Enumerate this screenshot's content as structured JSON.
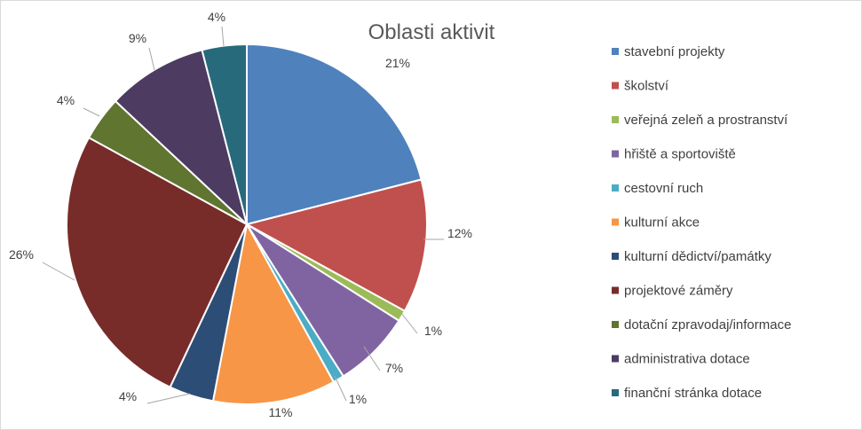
{
  "chart_data": {
    "type": "pie",
    "title": "Oblasti aktivit",
    "categories": [
      "stavební projekty",
      "školství",
      "veřejná zeleň a prostranství",
      "hřiště a sportoviště",
      "cestovní ruch",
      "kulturní akce",
      "kulturní dědictví/památky",
      "projektové záměry",
      "dotační zpravodaj/informace",
      "administrativa dotace",
      "finanční stránka dotace"
    ],
    "values": [
      21,
      12,
      1,
      7,
      1,
      11,
      4,
      26,
      4,
      9,
      4
    ],
    "labels": [
      "21%",
      "12%",
      "1%",
      "7%",
      "1%",
      "11%",
      "4%",
      "26%",
      "4%",
      "9%",
      "4%"
    ],
    "colors": [
      "#4f81bd",
      "#c0504d",
      "#9bbb59",
      "#8064a2",
      "#4bacc6",
      "#f79646",
      "#2c4d75",
      "#772c2a",
      "#5f7530",
      "#4d3b62",
      "#276a7c"
    ],
    "legend_position": "right",
    "grid": false
  }
}
